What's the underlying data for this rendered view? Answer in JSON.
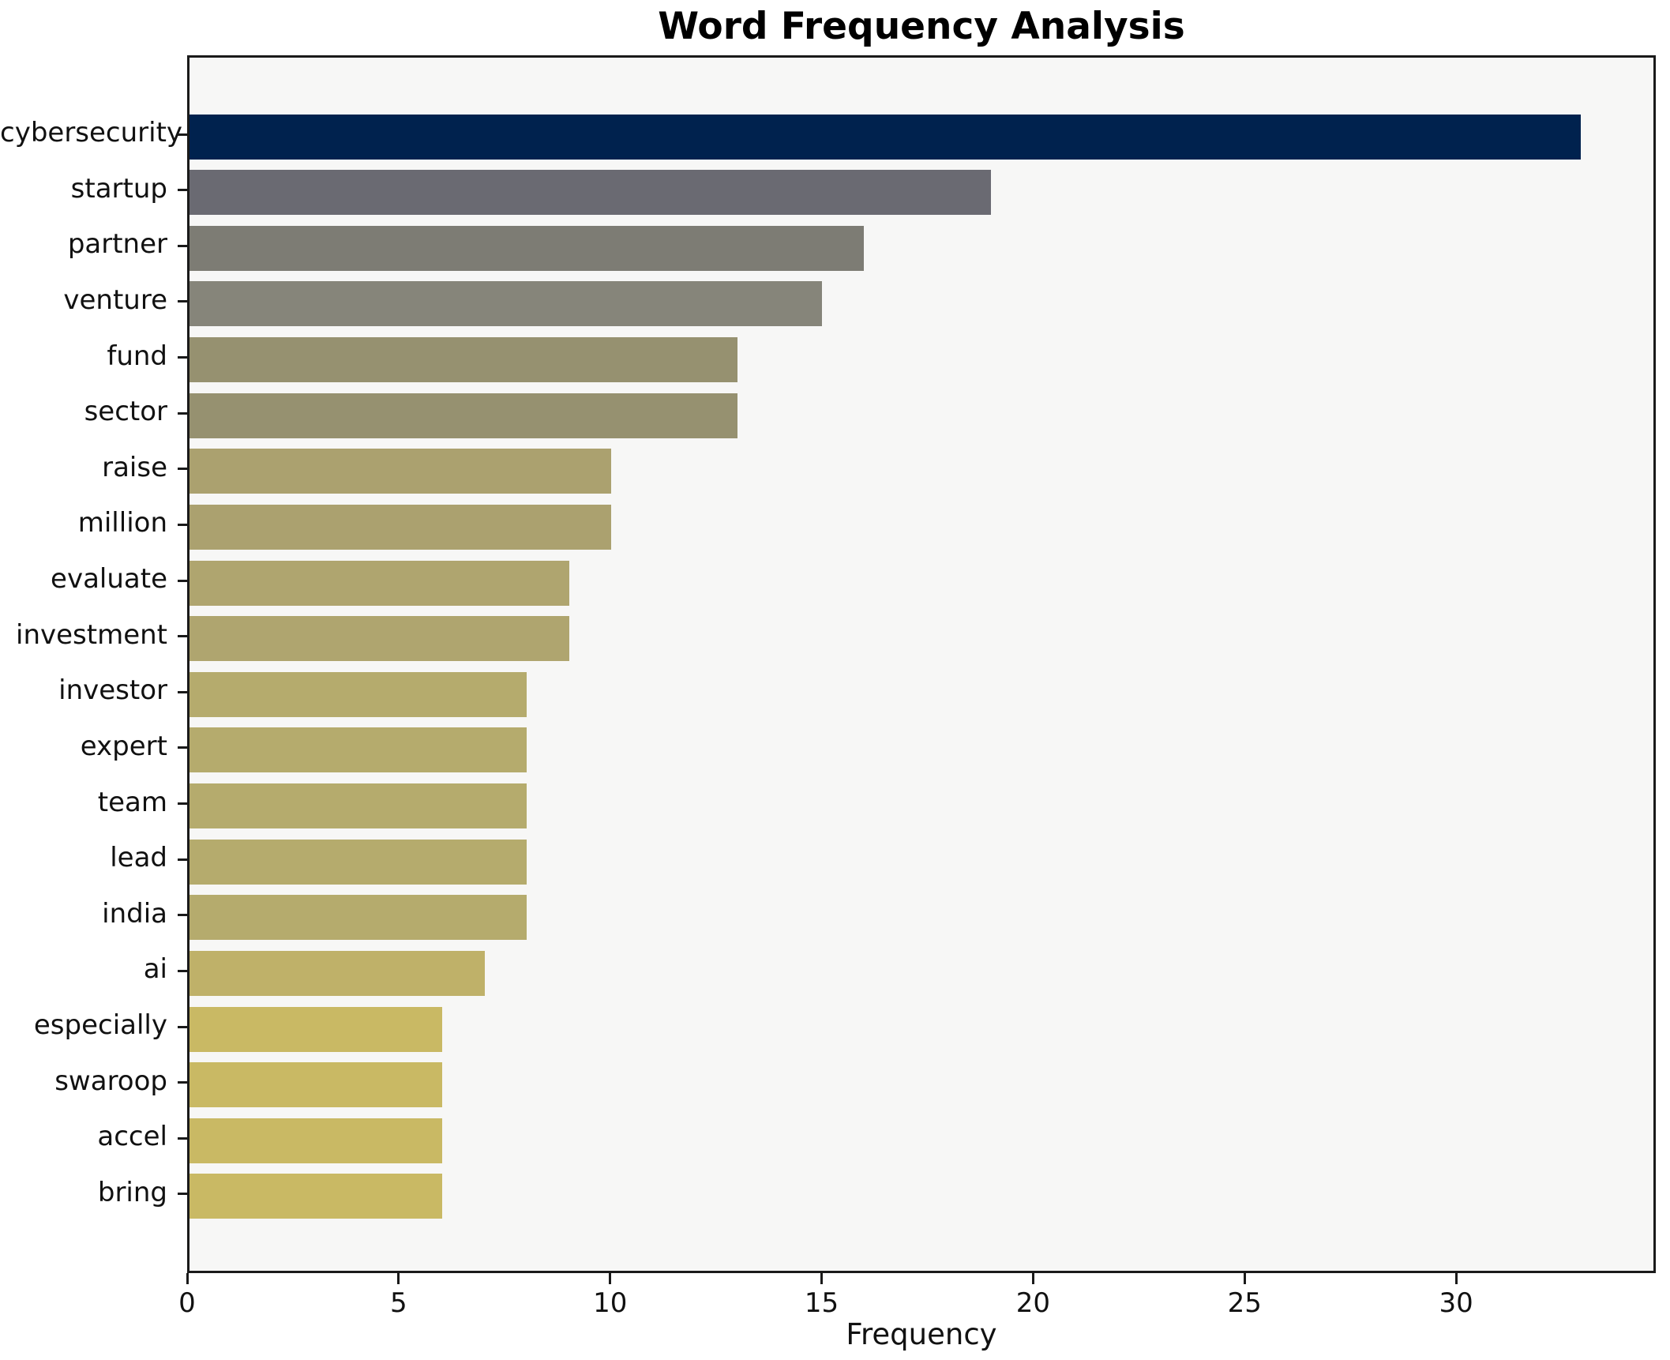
{
  "chart_data": {
    "type": "bar",
    "orientation": "horizontal",
    "title": "Word Frequency Analysis",
    "xlabel": "Frequency",
    "ylabel": "",
    "categories": [
      "cybersecurity",
      "startup",
      "partner",
      "venture",
      "fund",
      "sector",
      "raise",
      "million",
      "evaluate",
      "investment",
      "investor",
      "expert",
      "team",
      "lead",
      "india",
      "ai",
      "especially",
      "swaroop",
      "accel",
      "bring"
    ],
    "values": [
      33,
      19,
      16,
      15,
      13,
      13,
      10,
      10,
      9,
      9,
      8,
      8,
      8,
      8,
      8,
      7,
      6,
      6,
      6,
      6
    ],
    "bar_colors": [
      "#00224e",
      "#6a6a72",
      "#7d7c74",
      "#86857a",
      "#969170",
      "#969170",
      "#aba16f",
      "#aba16f",
      "#afa56f",
      "#afa56f",
      "#b5ab6d",
      "#b5ab6d",
      "#b5ab6d",
      "#b5ab6d",
      "#b5ab6d",
      "#bfb169",
      "#c9b964",
      "#c9b964",
      "#c9b964",
      "#c9b964"
    ],
    "x_ticks": [
      0,
      5,
      10,
      15,
      20,
      25,
      30
    ],
    "xlim": [
      0,
      34.72
    ],
    "grid": false,
    "legend": null,
    "plot_background": "#f7f7f6",
    "spine_color": "#1a1a1a"
  }
}
